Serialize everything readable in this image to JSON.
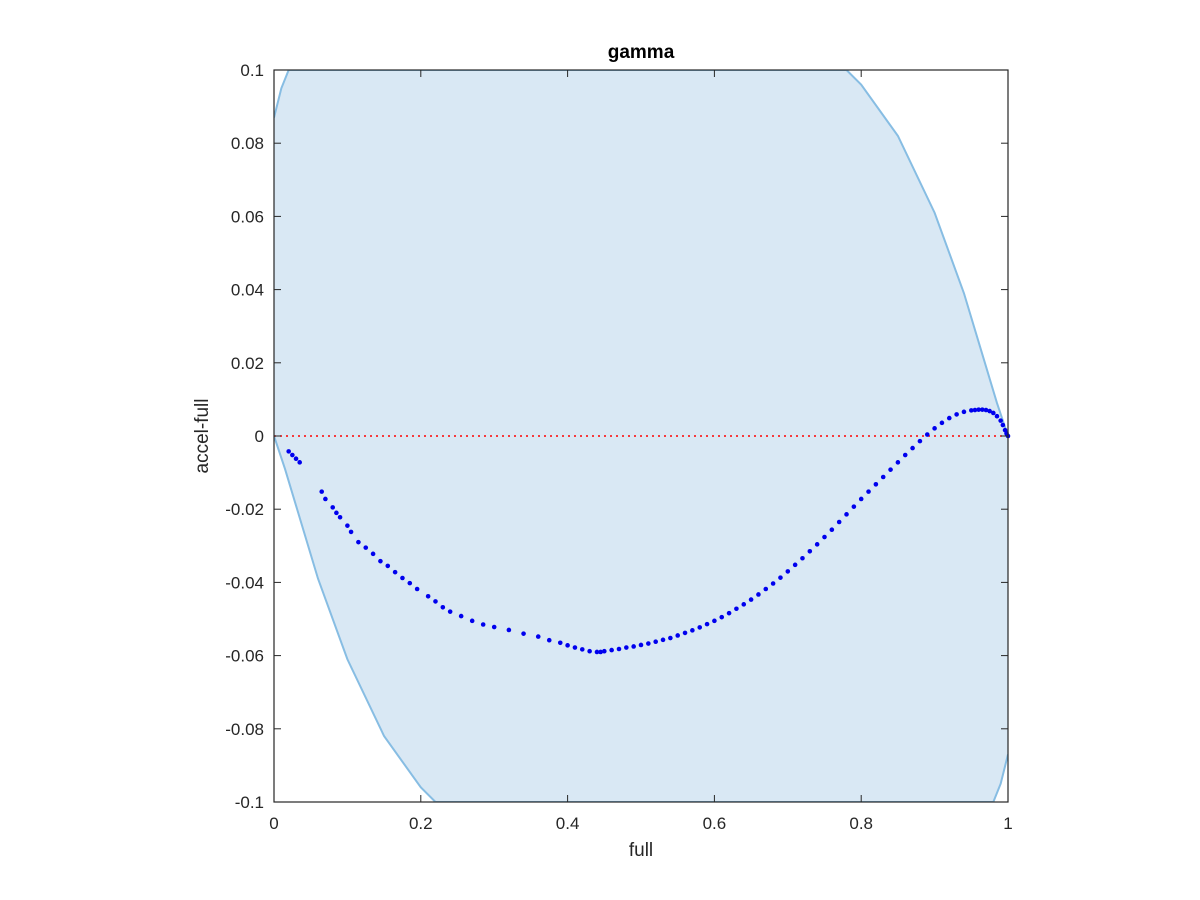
{
  "chart_data": {
    "type": "scatter",
    "title": "gamma",
    "xlabel": "full",
    "ylabel": "accel-full",
    "xlim": [
      0,
      1
    ],
    "ylim": [
      -0.1,
      0.1
    ],
    "x_ticks": [
      0,
      0.2,
      0.4,
      0.6,
      0.8,
      1
    ],
    "x_tick_labels": [
      "0",
      "0.2",
      "0.4",
      "0.6",
      "0.8",
      "1"
    ],
    "y_ticks": [
      -0.1,
      -0.08,
      -0.06,
      -0.04,
      -0.02,
      0,
      0.02,
      0.04,
      0.06,
      0.08,
      0.1
    ],
    "y_tick_labels": [
      "-0.1",
      "-0.08",
      "-0.06",
      "-0.04",
      "-0.02",
      "0",
      "0.02",
      "0.04",
      "0.06",
      "0.08",
      "0.1"
    ],
    "grid": false,
    "band": {
      "fill_color": "#d9e8f4",
      "edge_color": "#87bde3",
      "upper_edge": [
        [
          0,
          0.087
        ],
        [
          0.01,
          0.095
        ],
        [
          0.02,
          0.1
        ],
        [
          0.78,
          0.1
        ],
        [
          0.8,
          0.096
        ],
        [
          0.85,
          0.082
        ],
        [
          0.9,
          0.061
        ],
        [
          0.94,
          0.039
        ],
        [
          0.97,
          0.019
        ],
        [
          0.985,
          0.009
        ],
        [
          1.0,
          0.0
        ]
      ],
      "lower_edge": [
        [
          0,
          0.0
        ],
        [
          0.015,
          -0.009
        ],
        [
          0.03,
          -0.019
        ],
        [
          0.06,
          -0.039
        ],
        [
          0.1,
          -0.061
        ],
        [
          0.15,
          -0.082
        ],
        [
          0.2,
          -0.096
        ],
        [
          0.22,
          -0.1
        ],
        [
          0.98,
          -0.1
        ],
        [
          0.99,
          -0.095
        ],
        [
          1.0,
          -0.087
        ]
      ]
    },
    "reference_line": {
      "y": 0,
      "color": "#ff0000",
      "style": "dotted"
    },
    "series": [
      {
        "color": "#0000ee",
        "x": [
          0.02,
          0.025,
          0.03,
          0.035,
          0.065,
          0.07,
          0.08,
          0.085,
          0.09,
          0.1,
          0.105,
          0.115,
          0.125,
          0.135,
          0.145,
          0.155,
          0.165,
          0.175,
          0.185,
          0.195,
          0.21,
          0.22,
          0.23,
          0.24,
          0.255,
          0.27,
          0.285,
          0.3,
          0.32,
          0.34,
          0.36,
          0.375,
          0.39,
          0.4,
          0.41,
          0.42,
          0.43,
          0.44,
          0.445,
          0.45,
          0.46,
          0.47,
          0.48,
          0.49,
          0.5,
          0.51,
          0.52,
          0.53,
          0.54,
          0.55,
          0.56,
          0.57,
          0.58,
          0.59,
          0.6,
          0.61,
          0.62,
          0.63,
          0.64,
          0.65,
          0.66,
          0.67,
          0.68,
          0.69,
          0.7,
          0.71,
          0.72,
          0.73,
          0.74,
          0.75,
          0.76,
          0.77,
          0.78,
          0.79,
          0.8,
          0.81,
          0.82,
          0.83,
          0.84,
          0.85,
          0.86,
          0.87,
          0.88,
          0.89,
          0.9,
          0.91,
          0.92,
          0.93,
          0.94,
          0.95,
          0.955,
          0.96,
          0.965,
          0.97,
          0.975,
          0.98,
          0.985,
          0.99,
          0.993,
          0.996,
          0.998,
          1.0
        ],
        "y": [
          -0.0042,
          -0.0052,
          -0.0062,
          -0.0072,
          -0.0152,
          -0.0172,
          -0.0195,
          -0.021,
          -0.0222,
          -0.0245,
          -0.0262,
          -0.029,
          -0.0305,
          -0.0322,
          -0.0342,
          -0.0355,
          -0.0372,
          -0.0388,
          -0.0402,
          -0.0418,
          -0.0438,
          -0.0452,
          -0.0468,
          -0.048,
          -0.0492,
          -0.0505,
          -0.0515,
          -0.0522,
          -0.053,
          -0.054,
          -0.0548,
          -0.0558,
          -0.0565,
          -0.0572,
          -0.0578,
          -0.0583,
          -0.0588,
          -0.059,
          -0.059,
          -0.0588,
          -0.0585,
          -0.0582,
          -0.0578,
          -0.0575,
          -0.0571,
          -0.0567,
          -0.0562,
          -0.0557,
          -0.0552,
          -0.0545,
          -0.0538,
          -0.0531,
          -0.0523,
          -0.0514,
          -0.0505,
          -0.0495,
          -0.0484,
          -0.0472,
          -0.046,
          -0.0447,
          -0.0433,
          -0.0418,
          -0.0403,
          -0.0387,
          -0.037,
          -0.0352,
          -0.0334,
          -0.0315,
          -0.0296,
          -0.0276,
          -0.0256,
          -0.0235,
          -0.0214,
          -0.0193,
          -0.0172,
          -0.0152,
          -0.0132,
          -0.0112,
          -0.0092,
          -0.0072,
          -0.0052,
          -0.0033,
          -0.0014,
          0.0004,
          0.0021,
          0.0036,
          0.0049,
          0.0059,
          0.0066,
          0.007,
          0.0071,
          0.0072,
          0.0072,
          0.0071,
          0.0068,
          0.0063,
          0.0054,
          0.0042,
          0.003,
          0.0016,
          0.0007,
          0.0
        ]
      }
    ]
  }
}
